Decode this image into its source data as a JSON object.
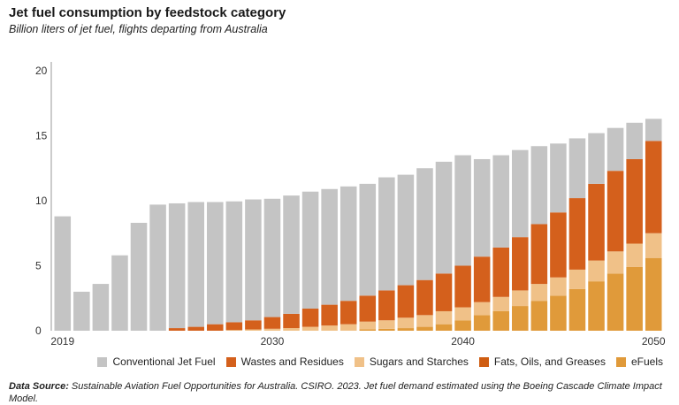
{
  "title": "Jet fuel consumption by feedstock category",
  "subtitle": "Billion liters of jet fuel, flights departing from Australia",
  "source_label": "Data Source:",
  "source_text": "Sustainable Aviation Fuel Opportunities for Australia. CSIRO. 2023. Jet fuel demand estimated using the Boeing Cascade Climate Impact Model.",
  "colors": {
    "Conventional Jet Fuel": "#c4c4c4",
    "Wastes and Residues": "#d4601c",
    "Sugars and Starches": "#f0c188",
    "Fats, Oils, and Greases": "#cf5d12",
    "eFuels": "#e09a3a",
    "axis": "#999999"
  },
  "chart_data": {
    "type": "bar",
    "stacked": true,
    "title": "Jet fuel consumption by feedstock category",
    "subtitle": "Billion liters of jet fuel, flights departing from Australia",
    "categories": [
      2019,
      2020,
      2021,
      2022,
      2023,
      2024,
      2025,
      2026,
      2027,
      2028,
      2029,
      2030,
      2031,
      2032,
      2033,
      2034,
      2035,
      2036,
      2037,
      2038,
      2039,
      2040,
      2041,
      2042,
      2043,
      2044,
      2045,
      2046,
      2047,
      2048,
      2049,
      2050
    ],
    "x_tick_labels": [
      "2019",
      "2030",
      "2040",
      "2050"
    ],
    "ylim": [
      0,
      20
    ],
    "yticks": [
      0,
      5,
      10,
      15,
      20
    ],
    "legend_position": "bottom-right",
    "series": [
      {
        "name": "eFuels",
        "values": [
          0,
          0,
          0,
          0,
          0,
          0,
          0,
          0,
          0,
          0,
          0,
          0,
          0,
          0,
          0,
          0,
          0.1,
          0.15,
          0.2,
          0.3,
          0.5,
          0.8,
          1.2,
          1.5,
          1.9,
          2.3,
          2.7,
          3.2,
          3.8,
          4.4,
          4.9,
          5.6
        ]
      },
      {
        "name": "Fats, Oils, and Greases",
        "values": [
          0,
          0,
          0,
          0,
          0,
          0,
          0,
          0,
          0,
          0,
          0,
          0,
          0,
          0,
          0,
          0,
          0,
          0,
          0,
          0,
          0,
          0,
          0,
          0,
          0,
          0,
          0,
          0,
          0,
          0,
          0,
          0
        ]
      },
      {
        "name": "Sugars and Starches",
        "values": [
          0,
          0,
          0,
          0,
          0,
          0,
          0,
          0,
          0,
          0.05,
          0.1,
          0.15,
          0.2,
          0.3,
          0.4,
          0.5,
          0.6,
          0.65,
          0.8,
          0.9,
          1.0,
          1.0,
          1.0,
          1.1,
          1.2,
          1.3,
          1.4,
          1.5,
          1.6,
          1.7,
          1.8,
          1.9
        ]
      },
      {
        "name": "Wastes and Residues",
        "values": [
          0,
          0,
          0,
          0,
          0,
          0,
          0.2,
          0.3,
          0.5,
          0.6,
          0.7,
          0.9,
          1.1,
          1.4,
          1.6,
          1.8,
          2.0,
          2.3,
          2.5,
          2.7,
          2.9,
          3.2,
          3.5,
          3.8,
          4.1,
          4.6,
          5.0,
          5.5,
          5.9,
          6.2,
          6.5,
          7.1
        ]
      },
      {
        "name": "Conventional Jet Fuel",
        "values": [
          8.8,
          3.0,
          3.6,
          5.8,
          8.3,
          9.7,
          9.6,
          9.6,
          9.4,
          9.3,
          9.3,
          9.1,
          9.1,
          9.0,
          8.9,
          8.8,
          8.6,
          8.7,
          8.5,
          8.6,
          8.6,
          8.5,
          7.5,
          7.1,
          6.7,
          6.0,
          5.3,
          4.6,
          3.9,
          3.3,
          2.8,
          1.7
        ]
      }
    ]
  },
  "legend": [
    "Conventional Jet Fuel",
    "Wastes and Residues",
    "Sugars and Starches",
    "Fats, Oils, and Greases",
    "eFuels"
  ]
}
